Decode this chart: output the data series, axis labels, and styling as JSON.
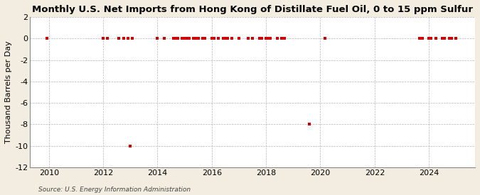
{
  "title": "Monthly U.S. Net Imports from Hong Kong of Distillate Fuel Oil, 0 to 15 ppm Sulfur",
  "ylabel": "Thousand Barrels per Day",
  "source": "Source: U.S. Energy Information Administration",
  "background_color": "#f2ede0",
  "plot_bg_color": "#ffffff",
  "ylim": [
    -12,
    2
  ],
  "yticks": [
    2,
    0,
    -2,
    -4,
    -6,
    -8,
    -10,
    -12
  ],
  "xlim_start": 2009.3,
  "xlim_end": 2025.7,
  "xticks": [
    2010,
    2012,
    2014,
    2016,
    2018,
    2020,
    2022,
    2024
  ],
  "data_points": [
    [
      2009.917,
      0
    ],
    [
      2012.0,
      0
    ],
    [
      2012.167,
      0
    ],
    [
      2012.583,
      0
    ],
    [
      2012.75,
      0
    ],
    [
      2012.917,
      0
    ],
    [
      2013.0,
      -10
    ],
    [
      2013.083,
      0
    ],
    [
      2014.0,
      0
    ],
    [
      2014.25,
      0
    ],
    [
      2014.583,
      0
    ],
    [
      2014.667,
      0
    ],
    [
      2014.75,
      0
    ],
    [
      2014.917,
      0
    ],
    [
      2015.0,
      0
    ],
    [
      2015.083,
      0
    ],
    [
      2015.167,
      0
    ],
    [
      2015.333,
      0
    ],
    [
      2015.417,
      0
    ],
    [
      2015.5,
      0
    ],
    [
      2015.667,
      0
    ],
    [
      2015.75,
      0
    ],
    [
      2016.0,
      0
    ],
    [
      2016.083,
      0
    ],
    [
      2016.25,
      0
    ],
    [
      2016.417,
      0
    ],
    [
      2016.5,
      0
    ],
    [
      2016.583,
      0
    ],
    [
      2016.75,
      0
    ],
    [
      2017.0,
      0
    ],
    [
      2017.333,
      0
    ],
    [
      2017.5,
      0
    ],
    [
      2017.75,
      0
    ],
    [
      2017.833,
      0
    ],
    [
      2018.0,
      0
    ],
    [
      2018.083,
      0
    ],
    [
      2018.167,
      0
    ],
    [
      2018.417,
      0
    ],
    [
      2018.583,
      0
    ],
    [
      2018.667,
      0
    ],
    [
      2019.583,
      -8
    ],
    [
      2020.167,
      0
    ],
    [
      2023.667,
      0
    ],
    [
      2023.75,
      0
    ],
    [
      2024.0,
      0
    ],
    [
      2024.083,
      0
    ],
    [
      2024.25,
      0
    ],
    [
      2024.5,
      0
    ],
    [
      2024.583,
      0
    ],
    [
      2024.75,
      0
    ],
    [
      2024.833,
      0
    ],
    [
      2025.0,
      0
    ]
  ],
  "marker_color": "#cc0000",
  "marker_size": 3.5,
  "grid_color": "#999999",
  "title_fontsize": 9.5,
  "axis_fontsize": 8,
  "tick_fontsize": 8
}
